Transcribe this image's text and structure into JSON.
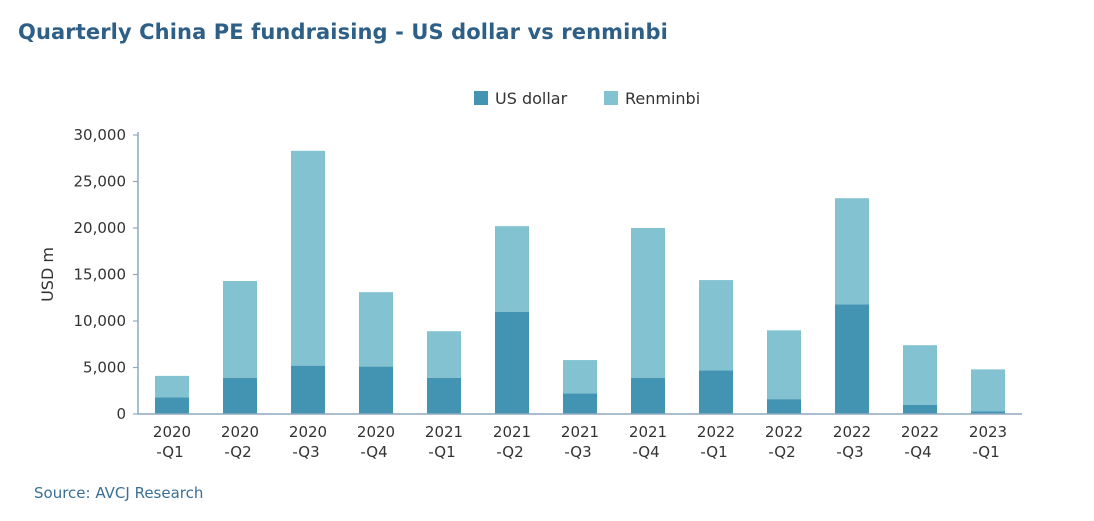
{
  "chart_data": {
    "type": "bar",
    "stacked": true,
    "title": "Quarterly China PE fundraising - US dollar vs renminbi",
    "source": "Source: AVCJ Research",
    "ylabel": "USD m",
    "xlabel": "",
    "ylim": [
      0,
      30000
    ],
    "yticks": [
      0,
      5000,
      10000,
      15000,
      20000,
      25000,
      30000
    ],
    "ytick_labels": [
      "0",
      "5,000",
      "10,000",
      "15,000",
      "20,000",
      "25,000",
      "30,000"
    ],
    "categories": [
      [
        "2020",
        "-Q1"
      ],
      [
        "2020",
        "-Q2"
      ],
      [
        "2020",
        "-Q3"
      ],
      [
        "2020",
        "-Q4"
      ],
      [
        "2021",
        "-Q1"
      ],
      [
        "2021",
        "-Q2"
      ],
      [
        "2021",
        "-Q3"
      ],
      [
        "2021",
        "-Q4"
      ],
      [
        "2022",
        "-Q1"
      ],
      [
        "2022",
        "-Q2"
      ],
      [
        "2022",
        "-Q3"
      ],
      [
        "2022",
        "-Q4"
      ],
      [
        "2023",
        "-Q1"
      ]
    ],
    "legend_position": "top-center",
    "series": [
      {
        "name": "US dollar",
        "color": "#4393b3",
        "values": [
          1800,
          3900,
          5200,
          5100,
          3900,
          11000,
          2200,
          3900,
          4700,
          1600,
          11800,
          1000,
          300
        ]
      },
      {
        "name": "Renminbi",
        "color": "#82c2d1",
        "values": [
          2300,
          10400,
          23100,
          8000,
          5000,
          9200,
          3600,
          16100,
          9700,
          7400,
          11400,
          6400,
          4500
        ]
      }
    ]
  }
}
